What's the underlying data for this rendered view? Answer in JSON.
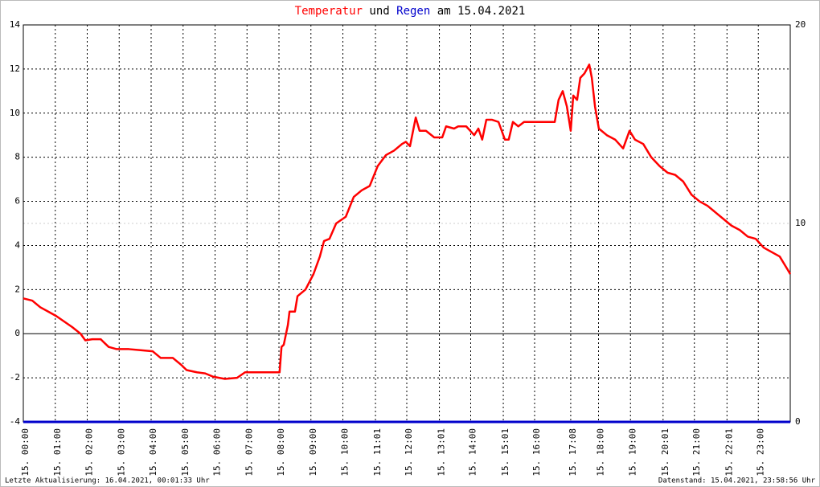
{
  "chart_data": {
    "type": "line",
    "title": [
      "Temperatur",
      "und",
      "Regen",
      "am 15.04.2021"
    ],
    "footer_left": "Letzte Aktualisierung: 16.04.2021, 00:01:33 Uhr",
    "footer_right": "Datenstand: 15.04.2021, 23:58:56 Uhr",
    "xlim": [
      0,
      24
    ],
    "xticks": [
      {
        "value": 0,
        "label": "15. 00:00"
      },
      {
        "value": 1,
        "label": "15. 01:00"
      },
      {
        "value": 2,
        "label": "15. 02:00"
      },
      {
        "value": 3,
        "label": "15. 03:00"
      },
      {
        "value": 4,
        "label": "15. 04:00"
      },
      {
        "value": 5,
        "label": "15. 05:00"
      },
      {
        "value": 6,
        "label": "15. 06:00"
      },
      {
        "value": 7,
        "label": "15. 07:00"
      },
      {
        "value": 8,
        "label": "15. 08:00"
      },
      {
        "value": 9,
        "label": "15. 09:00"
      },
      {
        "value": 10,
        "label": "15. 10:00"
      },
      {
        "value": 11.02,
        "label": "15. 11:01"
      },
      {
        "value": 12,
        "label": "15. 12:00"
      },
      {
        "value": 13.02,
        "label": "15. 13:01"
      },
      {
        "value": 14,
        "label": "15. 14:00"
      },
      {
        "value": 15.02,
        "label": "15. 15:01"
      },
      {
        "value": 16,
        "label": "15. 16:00"
      },
      {
        "value": 17.13,
        "label": "15. 17:08"
      },
      {
        "value": 18,
        "label": "15. 18:00"
      },
      {
        "value": 19,
        "label": "15. 19:00"
      },
      {
        "value": 20.02,
        "label": "15. 20:01"
      },
      {
        "value": 21,
        "label": "15. 21:00"
      },
      {
        "value": 22.02,
        "label": "15. 22:01"
      },
      {
        "value": 23,
        "label": "15. 23:00"
      }
    ],
    "ylim": [
      -4,
      14
    ],
    "yticks": [
      -4,
      -2,
      0,
      2,
      4,
      6,
      8,
      10,
      12,
      14
    ],
    "y2lim": [
      0,
      20
    ],
    "y2ticks": [
      0,
      10,
      20
    ],
    "grid": true,
    "series": [
      {
        "name": "Temperatur",
        "color": "#ff0000",
        "x": [
          0,
          0.28,
          0.53,
          0.78,
          1.03,
          1.28,
          1.53,
          1.79,
          1.94,
          2.16,
          2.42,
          2.67,
          2.92,
          3.3,
          3.67,
          4.05,
          4.3,
          4.68,
          4.93,
          5.11,
          5.43,
          5.69,
          5.94,
          6.31,
          6.69,
          6.94,
          7.32,
          8.02,
          8.08,
          8.15,
          8.28,
          8.33,
          8.5,
          8.58,
          8.83,
          9.08,
          9.28,
          9.41,
          9.58,
          9.79,
          10.09,
          10.34,
          10.59,
          10.84,
          11.09,
          11.35,
          11.6,
          11.85,
          11.97,
          12.1,
          12.28,
          12.4,
          12.6,
          12.86,
          13.11,
          13.23,
          13.48,
          13.61,
          13.86,
          14.11,
          14.24,
          14.36,
          14.49,
          14.67,
          14.87,
          15.07,
          15.19,
          15.32,
          15.49,
          15.67,
          15.99,
          16.38,
          16.63,
          16.75,
          16.88,
          17.01,
          17.13,
          17.21,
          17.33,
          17.43,
          17.56,
          17.71,
          17.79,
          17.89,
          18.01,
          18.26,
          18.52,
          18.77,
          18.97,
          19.14,
          19.4,
          19.65,
          19.91,
          20.16,
          20.4,
          20.65,
          20.91,
          21.16,
          21.41,
          21.66,
          21.91,
          22.16,
          22.42,
          22.67,
          22.92,
          23.17,
          23.42,
          23.67,
          23.92,
          24.0
        ],
        "values": [
          1.6,
          1.5,
          1.2,
          1.0,
          0.8,
          0.55,
          0.3,
          0.0,
          -0.3,
          -0.25,
          -0.25,
          -0.6,
          -0.7,
          -0.7,
          -0.75,
          -0.8,
          -1.1,
          -1.1,
          -1.4,
          -1.65,
          -1.75,
          -1.8,
          -1.95,
          -2.05,
          -2.0,
          -1.75,
          -1.75,
          -1.75,
          -0.6,
          -0.5,
          0.4,
          1.0,
          1.0,
          1.7,
          2.0,
          2.7,
          3.5,
          4.2,
          4.3,
          5.0,
          5.3,
          6.2,
          6.5,
          6.7,
          7.6,
          8.1,
          8.3,
          8.6,
          8.7,
          8.5,
          9.8,
          9.2,
          9.2,
          8.9,
          8.9,
          9.4,
          9.3,
          9.4,
          9.4,
          9.0,
          9.3,
          8.8,
          9.7,
          9.7,
          9.6,
          8.8,
          8.8,
          9.6,
          9.4,
          9.6,
          9.6,
          9.6,
          9.6,
          10.6,
          11.0,
          10.3,
          9.2,
          10.8,
          10.6,
          11.6,
          11.8,
          12.2,
          11.6,
          10.3,
          9.3,
          9.0,
          8.8,
          8.4,
          9.2,
          8.8,
          8.6,
          8.0,
          7.6,
          7.3,
          7.2,
          6.9,
          6.3,
          6.0,
          5.8,
          5.5,
          5.2,
          4.9,
          4.7,
          4.4,
          4.3,
          3.9,
          3.7,
          3.5,
          2.9,
          2.7
        ]
      },
      {
        "name": "Regen",
        "color": "#0000cc",
        "axis": "y2",
        "x": [
          0,
          24
        ],
        "values": [
          0,
          0
        ]
      }
    ]
  }
}
